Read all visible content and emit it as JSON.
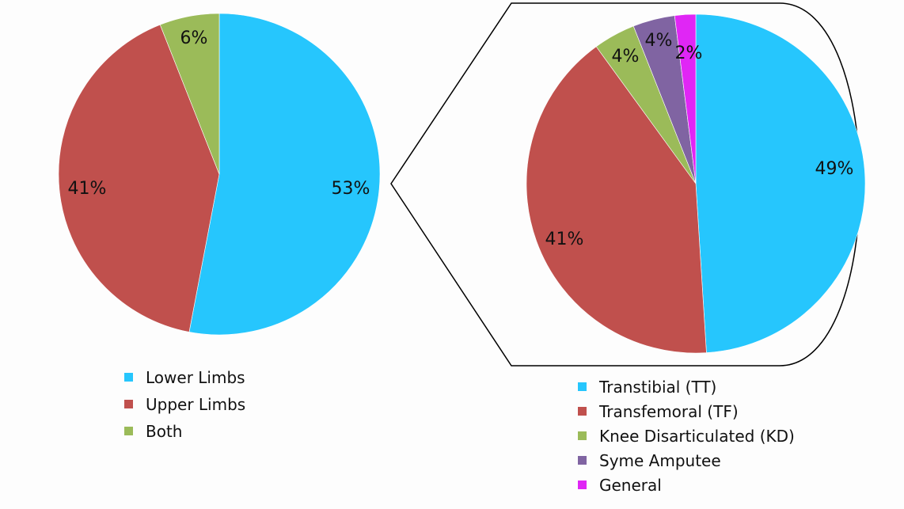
{
  "chart_data": [
    {
      "type": "pie",
      "title": "",
      "slices": [
        {
          "label": "Lower Limbs",
          "value": 53,
          "display": "53%",
          "color": "#26c6fd"
        },
        {
          "label": "Upper Limbs",
          "value": 41,
          "display": "41%",
          "color": "#c0504d"
        },
        {
          "label": "Both",
          "value": 6,
          "display": "6%",
          "color": "#9bbb59"
        }
      ],
      "legend_position": "bottom"
    },
    {
      "type": "pie",
      "title": "",
      "slices": [
        {
          "label": "Transtibial (TT)",
          "value": 49,
          "display": "49%",
          "color": "#26c6fd"
        },
        {
          "label": "Transfemoral (TF)",
          "value": 41,
          "display": "41%",
          "color": "#c0504d"
        },
        {
          "label": "Knee Disarticulated (KD)",
          "value": 4,
          "display": "4%",
          "color": "#9bbb59"
        },
        {
          "label": "Syme Amputee",
          "value": 4,
          "display": "4%",
          "color": "#8064a2"
        },
        {
          "label": "General",
          "value": 2,
          "display": "2%",
          "color": "#e026f5"
        }
      ],
      "legend_position": "bottom",
      "expands": "Lower Limbs"
    }
  ]
}
